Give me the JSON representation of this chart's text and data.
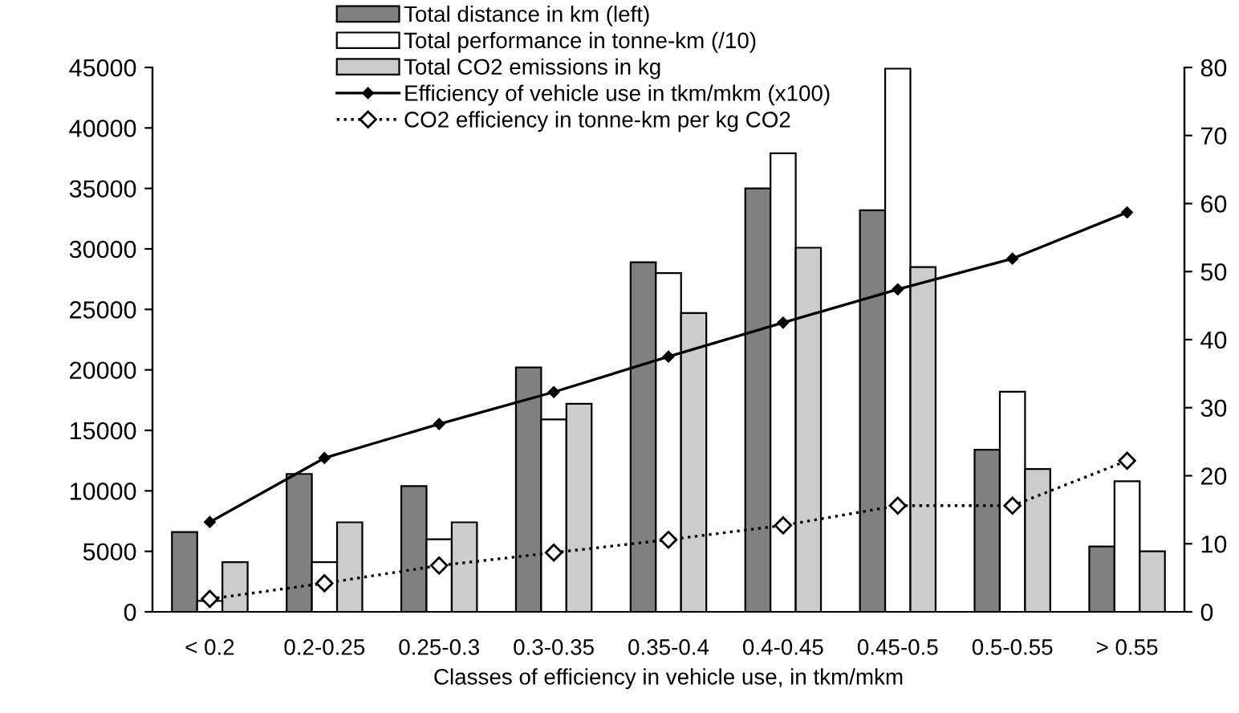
{
  "chart_data": {
    "type": "bar",
    "xlabel": "Classes of efficiency in vehicle use, in tkm/mkm",
    "categories": [
      "< 0.2",
      "0.2-0.25",
      "0.25-0.3",
      "0.3-0.35",
      "0.35-0.4",
      "0.4-0.45",
      "0.45-0.5",
      "0.5-0.55",
      "> 0.55"
    ],
    "series": [
      {
        "name": "Total distance in km (left)",
        "color": "#808080",
        "values": [
          6600,
          11400,
          10400,
          20200,
          28900,
          35000,
          33200,
          13400,
          5400
        ]
      },
      {
        "name": "Total performance in tonne-km (/10)",
        "color": "#ffffff",
        "values": [
          900,
          4100,
          6000,
          15900,
          28000,
          37900,
          44900,
          18200,
          10800
        ]
      },
      {
        "name": "Total CO2 emissions in kg",
        "color": "#cccccc",
        "values": [
          4100,
          7400,
          7400,
          17200,
          24700,
          30100,
          28500,
          11800,
          5000
        ]
      },
      {
        "name": "Efficiency of vehicle use in tkm/mkm (x100)",
        "type": "line",
        "axis": "y2",
        "color": "#000000",
        "marker": "diamond",
        "line_style": "solid",
        "values": [
          13.2,
          22.6,
          27.6,
          32.3,
          37.5,
          42.5,
          47.4,
          51.9,
          58.7
        ]
      },
      {
        "name": "CO2 efficiency in tonne-km per kg CO2",
        "type": "line",
        "axis": "y2",
        "color": "#000000",
        "marker": "diamond",
        "line_style": "dotted",
        "values": [
          1.9,
          4.2,
          6.8,
          8.7,
          10.6,
          12.7,
          15.6,
          15.6,
          22.2
        ]
      }
    ],
    "ylim": [
      0,
      45000
    ],
    "yticks": [
      0,
      5000,
      10000,
      15000,
      20000,
      25000,
      30000,
      35000,
      40000,
      45000
    ],
    "y2lim": [
      0,
      80
    ],
    "y2ticks": [
      0,
      10,
      20,
      30,
      40,
      50,
      60,
      70,
      80
    ],
    "grid": false,
    "legend": "top left"
  }
}
